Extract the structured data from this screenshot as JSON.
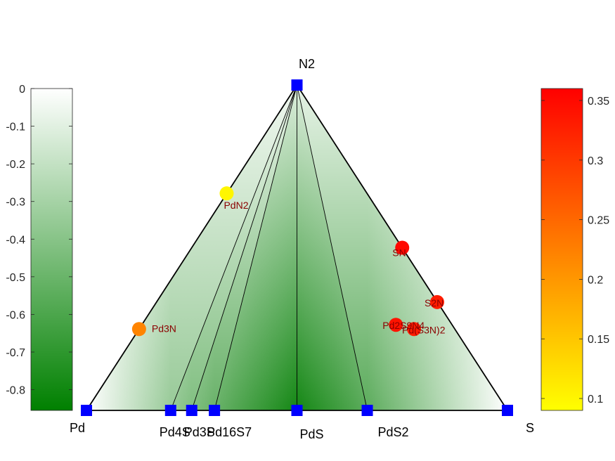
{
  "chart_data": {
    "type": "ternary",
    "vertices": [
      {
        "label": "Pd",
        "x": 0,
        "y": 0
      },
      {
        "label": "S",
        "x": 1,
        "y": 0
      },
      {
        "label": "N2",
        "x": 0.5,
        "y": 1
      }
    ],
    "stable_phases": [
      {
        "label": "Pd",
        "x": 0,
        "y": 0
      },
      {
        "label": "Pd4S",
        "x": 0.2,
        "y": 0
      },
      {
        "label": "Pd3S",
        "x": 0.25,
        "y": 0
      },
      {
        "label": "Pd16S7",
        "x": 0.304,
        "y": 0
      },
      {
        "label": "PdS",
        "x": 0.5,
        "y": 0
      },
      {
        "label": "PdS2",
        "x": 0.667,
        "y": 0
      },
      {
        "label": "S",
        "x": 1,
        "y": 0
      },
      {
        "label": "N2",
        "x": 0.5,
        "y": 1
      }
    ],
    "tie_lines": [
      [
        "Pd",
        "N2"
      ],
      [
        "Pd",
        "S"
      ],
      [
        "S",
        "N2"
      ],
      [
        "Pd4S",
        "N2"
      ],
      [
        "Pd3S",
        "N2"
      ],
      [
        "Pd16S7",
        "N2"
      ],
      [
        "PdS",
        "N2"
      ],
      [
        "PdS2",
        "N2"
      ]
    ],
    "unstable_phases": [
      {
        "label": "PdN2",
        "x": 0.333,
        "y": 0.667,
        "e_above_hull": 0.1
      },
      {
        "label": "Pd3N",
        "x": 0.125,
        "y": 0.25,
        "e_above_hull": 0.22
      },
      {
        "label": "SN",
        "x": 0.75,
        "y": 0.5,
        "e_above_hull": 0.35
      },
      {
        "label": "S2N",
        "x": 0.833,
        "y": 0.333,
        "e_above_hull": 0.33
      },
      {
        "label": "Pd2S9N4",
        "x": 0.735,
        "y": 0.263,
        "e_above_hull": 0.34
      },
      {
        "label": "Pd(S3N)2",
        "x": 0.778,
        "y": 0.25,
        "e_above_hull": 0.33
      }
    ],
    "formation_energy_colorbar": {
      "ticks": [
        "0",
        "-0.1",
        "-0.2",
        "-0.3",
        "-0.4",
        "-0.5",
        "-0.6",
        "-0.7",
        "-0.8"
      ],
      "range": [
        -0.855,
        0
      ],
      "colors": [
        "#008000",
        "#ffffff"
      ]
    },
    "hull_energy_colorbar": {
      "ticks": [
        "0.1",
        "0.15",
        "0.2",
        "0.25",
        "0.3",
        "0.35"
      ],
      "range": [
        0.09,
        0.36
      ],
      "colors": [
        "#ffff00",
        "#ff0000"
      ]
    }
  }
}
